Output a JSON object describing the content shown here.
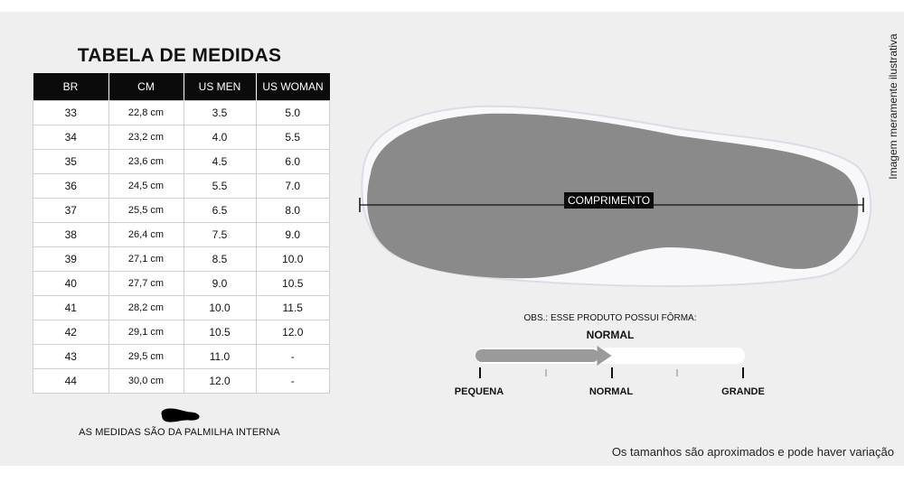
{
  "table": {
    "title": "TABELA DE MEDIDAS",
    "headers": [
      "BR",
      "CM",
      "US MEN",
      "US WOMAN"
    ],
    "rows": [
      [
        "33",
        "22,8 cm",
        "3.5",
        "5.0"
      ],
      [
        "34",
        "23,2 cm",
        "4.0",
        "5.5"
      ],
      [
        "35",
        "23,6 cm",
        "4.5",
        "6.0"
      ],
      [
        "36",
        "24,5 cm",
        "5.5",
        "7.0"
      ],
      [
        "37",
        "25,5 cm",
        "6.5",
        "8.0"
      ],
      [
        "38",
        "26,4 cm",
        "7.5",
        "9.0"
      ],
      [
        "39",
        "27,1 cm",
        "8.5",
        "10.0"
      ],
      [
        "40",
        "27,7 cm",
        "9.0",
        "10.5"
      ],
      [
        "41",
        "28,2 cm",
        "10.0",
        "11.5"
      ],
      [
        "42",
        "29,1 cm",
        "10.5",
        "12.0"
      ],
      [
        "43",
        "29,5 cm",
        "11.0",
        "-"
      ],
      [
        "44",
        "30,0 cm",
        "12.0",
        "-"
      ]
    ]
  },
  "palm_note": "AS MEDIDAS SÃO DA PALMILHA INTERNA",
  "shoe": {
    "measure_label": "COMPRIMENTO",
    "illustrative_note": "Imagem meramente ilustrativa"
  },
  "fit": {
    "obs": "OBS.: ESSE PRODUTO POSSUI FÔRMA:",
    "value": "NORMAL",
    "scale_labels": [
      "PEQUENA",
      "NORMAL",
      "GRANDE"
    ],
    "level": 0.5
  },
  "disclaimer": "Os tamanhos são aproximados e pode haver variação",
  "colors": {
    "header_bg": "#0b0b0b",
    "panel_bg": "#efefef",
    "sole": "#8a8a8a",
    "arrow": "#9a9a9a"
  }
}
